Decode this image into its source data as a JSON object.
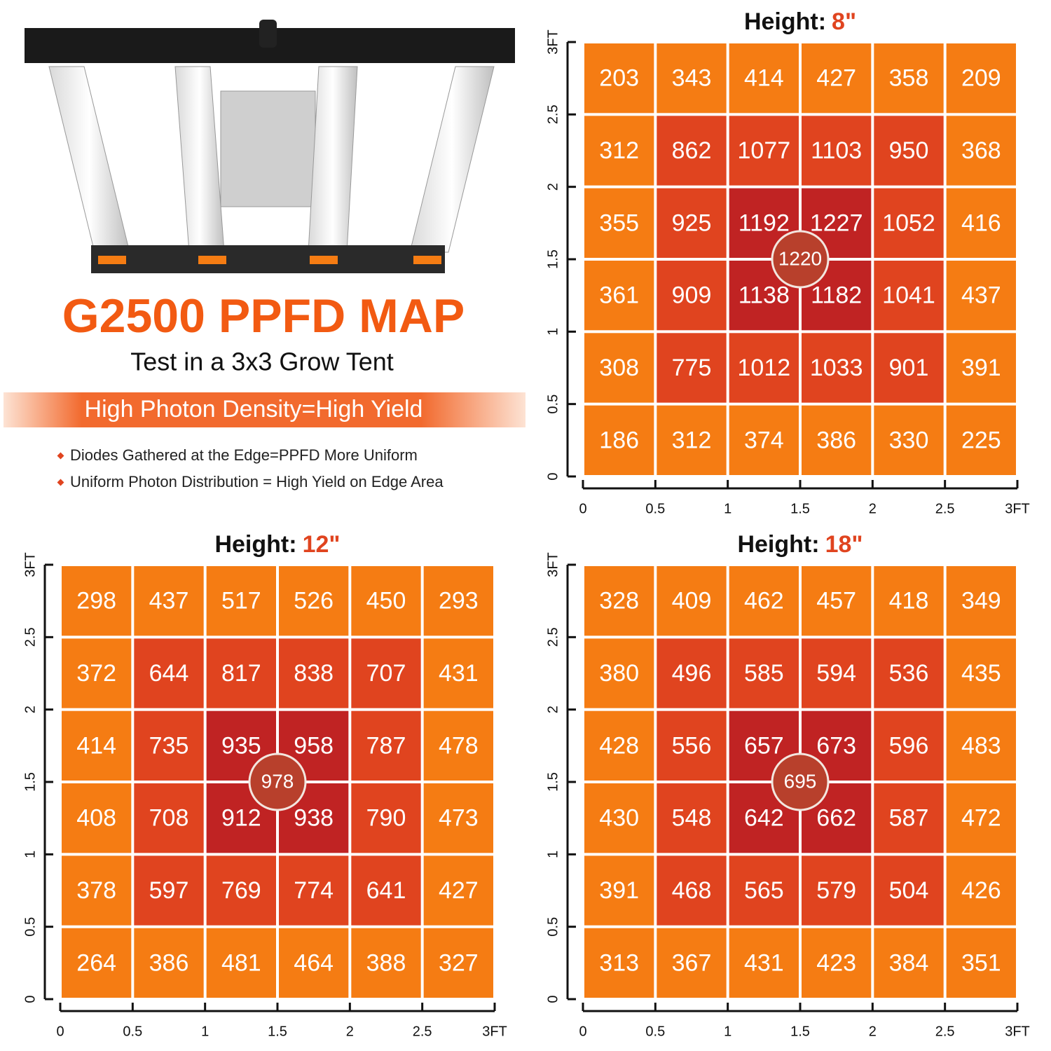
{
  "header": {
    "title": "G2500 PPFD MAP",
    "subtitle": "Test in a 3x3 Grow Tent",
    "banner": "High Photon Density=High Yield",
    "bullets": [
      "Diodes Gathered at the Edge=PPFD More Uniform",
      "Uniform Photon Distribution = High Yield on Edge Area"
    ]
  },
  "chart_data": [
    {
      "type": "heatmap",
      "title": "Height:",
      "title_value": "8\"",
      "center_value": 1220,
      "values": [
        [
          203,
          343,
          414,
          427,
          358,
          209
        ],
        [
          312,
          862,
          1077,
          1103,
          950,
          368
        ],
        [
          355,
          925,
          1192,
          1227,
          1052,
          416
        ],
        [
          361,
          909,
          1138,
          1182,
          1041,
          437
        ],
        [
          308,
          775,
          1012,
          1033,
          901,
          391
        ],
        [
          186,
          312,
          374,
          386,
          330,
          225
        ]
      ],
      "colors": [
        "#f57c13",
        "#e0441f",
        "#c02323"
      ],
      "xlim": [
        0,
        3
      ],
      "ylim": [
        0,
        3
      ],
      "xticks": [
        0,
        0.5,
        1,
        1.5,
        2,
        2.5,
        {
          "value": 3,
          "label": "3FT"
        }
      ],
      "yticks": [
        0,
        0.5,
        1,
        1.5,
        2,
        2.5,
        {
          "value": 3,
          "label": "3FT"
        }
      ]
    },
    {
      "type": "heatmap",
      "title": "Height:",
      "title_value": "12\"",
      "center_value": 978,
      "values": [
        [
          298,
          437,
          517,
          526,
          450,
          293
        ],
        [
          372,
          644,
          817,
          838,
          707,
          431
        ],
        [
          414,
          735,
          935,
          958,
          787,
          478
        ],
        [
          408,
          708,
          912,
          938,
          790,
          473
        ],
        [
          378,
          597,
          769,
          774,
          641,
          427
        ],
        [
          264,
          386,
          481,
          464,
          388,
          327
        ]
      ],
      "colors": [
        "#f57c13",
        "#e0441f",
        "#c02323"
      ],
      "xlim": [
        0,
        3
      ],
      "ylim": [
        0,
        3
      ],
      "xticks": [
        0,
        0.5,
        1,
        1.5,
        2,
        2.5,
        {
          "value": 3,
          "label": "3FT"
        }
      ],
      "yticks": [
        0,
        0.5,
        1,
        1.5,
        2,
        2.5,
        {
          "value": 3,
          "label": "3FT"
        }
      ]
    },
    {
      "type": "heatmap",
      "title": "Height:",
      "title_value": "18\"",
      "center_value": 695,
      "values": [
        [
          328,
          409,
          462,
          457,
          418,
          349
        ],
        [
          380,
          496,
          585,
          594,
          536,
          435
        ],
        [
          428,
          556,
          657,
          673,
          596,
          483
        ],
        [
          430,
          548,
          642,
          662,
          587,
          472
        ],
        [
          391,
          468,
          565,
          579,
          504,
          426
        ],
        [
          313,
          367,
          431,
          423,
          384,
          351
        ]
      ],
      "colors": [
        "#f57c13",
        "#e0441f",
        "#c02323"
      ],
      "xlim": [
        0,
        3
      ],
      "ylim": [
        0,
        3
      ],
      "xticks": [
        0,
        0.5,
        1,
        1.5,
        2,
        2.5,
        {
          "value": 3,
          "label": "3FT"
        }
      ],
      "yticks": [
        0,
        0.5,
        1,
        1.5,
        2,
        2.5,
        {
          "value": 3,
          "label": "3FT"
        }
      ]
    }
  ]
}
